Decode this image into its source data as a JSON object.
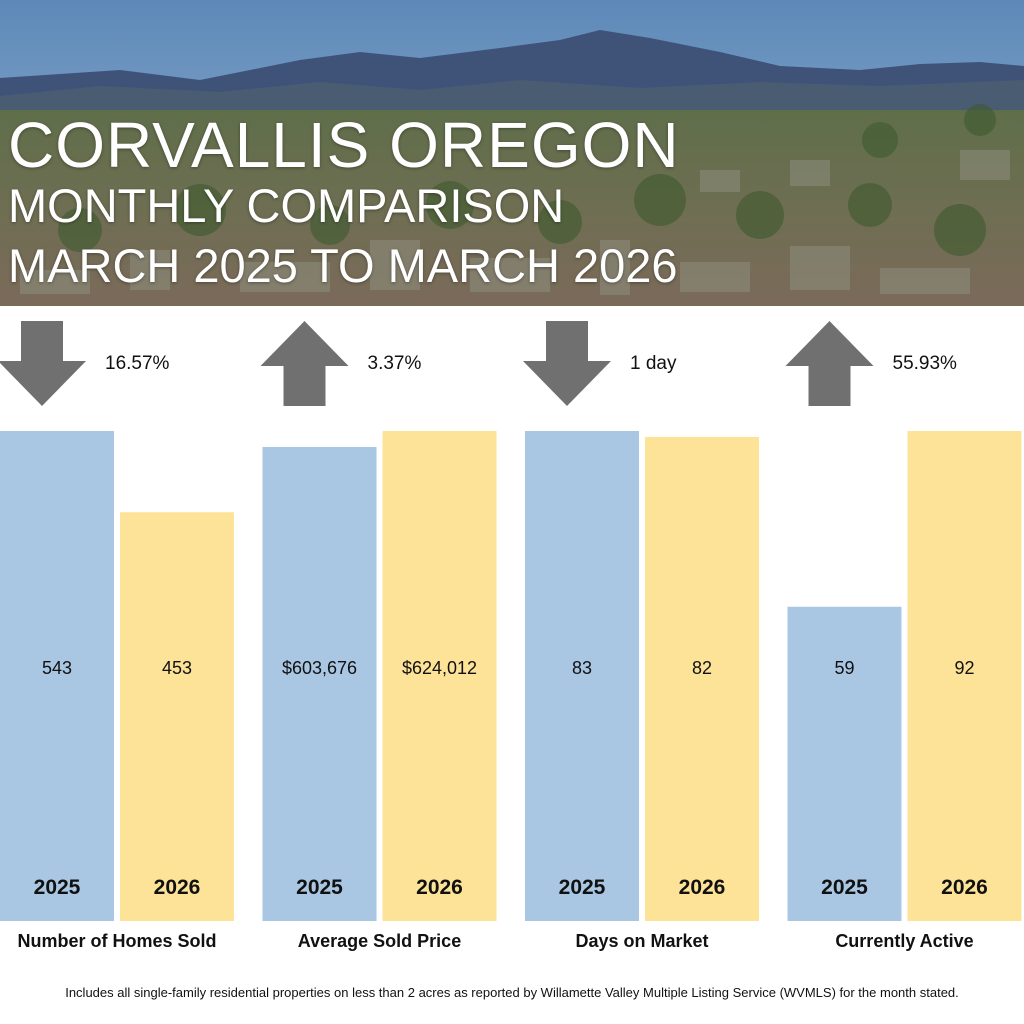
{
  "header": {
    "line1": "CORVALLIS OREGON",
    "line2": "MONTHLY COMPARISON",
    "line3": "MARCH 2025 TO MARCH 2026"
  },
  "colors": {
    "year_2025": "#a9c6e3",
    "year_2026": "#fde398",
    "arrow": "#707070"
  },
  "chart_data": {
    "type": "bar",
    "title": "Corvallis Oregon Monthly Comparison, March 2025 to March 2026",
    "series_names": [
      "2025",
      "2026"
    ],
    "groups": [
      {
        "label": "Number of Homes Sold",
        "values": [
          543,
          453
        ],
        "value_labels": [
          "543",
          "453"
        ],
        "change": "16.57%",
        "direction": "down"
      },
      {
        "label": "Average Sold Price",
        "values": [
          603676,
          624012
        ],
        "value_labels": [
          "$603,676",
          "$624,012"
        ],
        "change": "3.37%",
        "direction": "up"
      },
      {
        "label": "Days on Market",
        "values": [
          83,
          82
        ],
        "value_labels": [
          "83",
          "82"
        ],
        "change": "1 day",
        "direction": "down"
      },
      {
        "label": "Currently Active",
        "values": [
          59,
          92
        ],
        "value_labels": [
          "59",
          "92"
        ],
        "change": "55.93%",
        "direction": "up"
      }
    ]
  },
  "footnote": "Includes all single-family residential properties on less than 2 acres as reported by Willamette Valley Multiple Listing Service (WVMLS) for the month stated."
}
